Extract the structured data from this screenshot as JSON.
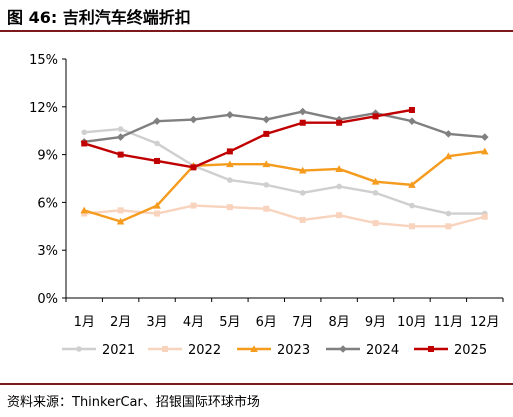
{
  "title": "图 46: 吉利汽车终端折扣",
  "source": "资料来源：ThinkerCar、招银国际环球市场",
  "chart_data": {
    "type": "line",
    "categories": [
      "1月",
      "2月",
      "3月",
      "4月",
      "5月",
      "6月",
      "7月",
      "8月",
      "9月",
      "10月",
      "11月",
      "12月"
    ],
    "ylim": [
      0,
      15
    ],
    "yticks": [
      "0%",
      "3%",
      "6%",
      "9%",
      "12%",
      "15%"
    ],
    "ytick_values": [
      0,
      3,
      6,
      9,
      12,
      15
    ],
    "grid": false,
    "legend_position": "bottom",
    "series": [
      {
        "name": "2021",
        "color": "#cfcfcf",
        "marker": "circle",
        "values": [
          10.4,
          10.6,
          9.7,
          8.3,
          7.4,
          7.1,
          6.6,
          7.0,
          6.6,
          5.8,
          5.3,
          5.3
        ]
      },
      {
        "name": "2022",
        "color": "#f8d3bd",
        "marker": "square",
        "values": [
          5.3,
          5.5,
          5.3,
          5.8,
          5.7,
          5.6,
          4.9,
          5.2,
          4.7,
          4.5,
          4.5,
          5.1
        ]
      },
      {
        "name": "2023",
        "color": "#f59b1e",
        "marker": "triangle",
        "values": [
          5.5,
          4.8,
          5.8,
          8.3,
          8.4,
          8.4,
          8.0,
          8.1,
          7.3,
          7.1,
          8.9,
          9.2
        ]
      },
      {
        "name": "2024",
        "color": "#808080",
        "marker": "diamond",
        "values": [
          9.8,
          10.1,
          11.1,
          11.2,
          11.5,
          11.2,
          11.7,
          11.2,
          11.6,
          11.1,
          10.3,
          10.1
        ]
      },
      {
        "name": "2025",
        "color": "#c00000",
        "marker": "square",
        "values": [
          9.7,
          9.0,
          8.6,
          8.2,
          9.2,
          10.3,
          11.0,
          11.0,
          11.4,
          11.8,
          null,
          null
        ]
      }
    ]
  }
}
